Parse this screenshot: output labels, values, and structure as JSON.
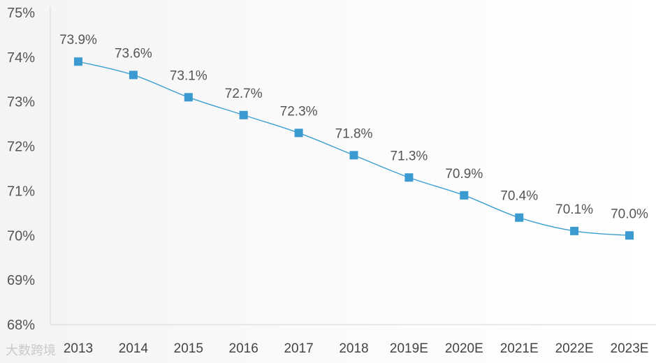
{
  "chart_data": {
    "type": "line",
    "categories": [
      "2013",
      "2014",
      "2015",
      "2016",
      "2017",
      "2018",
      "2019E",
      "2020E",
      "2021E",
      "2022E",
      "2023E"
    ],
    "series": [
      {
        "values": [
          73.9,
          73.6,
          73.1,
          72.7,
          72.3,
          71.8,
          71.3,
          70.9,
          70.4,
          70.1,
          70.0
        ]
      }
    ],
    "data_labels": [
      "73.9%",
      "73.6%",
      "73.1%",
      "72.7%",
      "72.3%",
      "71.8%",
      "71.3%",
      "70.9%",
      "70.4%",
      "70.1%",
      "70.0%"
    ],
    "y_ticks": [
      68,
      69,
      70,
      71,
      72,
      73,
      74,
      75
    ],
    "y_tick_labels": [
      "68%",
      "69%",
      "70%",
      "71%",
      "72%",
      "73%",
      "74%",
      "75%"
    ],
    "ylim": [
      68,
      75
    ],
    "grid": false,
    "line_color": "#3d9fd0",
    "marker_color": "#3b9ad0",
    "marker": "square",
    "smooth": true
  },
  "watermark": "大数跨境"
}
